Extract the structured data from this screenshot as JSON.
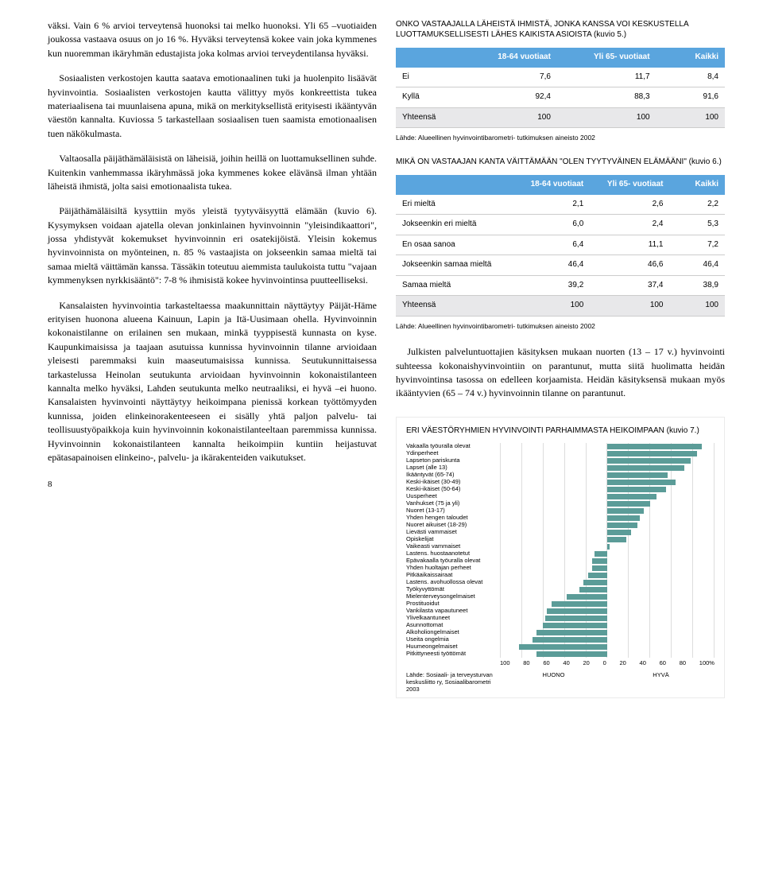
{
  "left": {
    "p1": "väksi. Vain 6 % arvioi terveytensä huonoksi tai melko huonoksi. Yli 65 –vuotiaiden joukossa vastaava osuus on jo 16 %. Hyväksi terveytensä kokee vain joka kymmenes kun nuoremman ikäryhmän edustajista joka kolmas arvioi terveydentilansa hyväksi.",
    "p2": "Sosiaalisten verkostojen kautta saatava emotionaalinen tuki ja huolenpito lisäävät hyvinvointia. Sosiaalisten verkostojen kautta välittyy myös konkreettista tukea materiaalisena tai muunlaisena apuna, mikä on merkityksellistä erityisesti ikääntyvän väestön kannalta. Kuviossa 5 tarkastellaan sosiaalisen tuen saamista emotionaalisen tuen näkökulmasta.",
    "p3": "Valtaosalla päijäthämäläisistä on läheisiä, joihin heillä on luottamuksellinen suhde. Kuitenkin vanhemmassa ikäryhmässä joka kymmenes kokee elävänsä ilman yhtään läheistä ihmistä, jolta saisi emotionaalista tukea.",
    "p4": "Päijäthämäläisiltä kysyttiin myös yleistä tyytyväisyyttä elämään (kuvio 6). Kysymyksen voidaan ajatella olevan jonkinlainen hyvinvoinnin \"yleisindikaattori\", jossa yhdistyvät kokemukset hyvinvoinnin eri osatekijöistä. Yleisin kokemus hyvinvoinnista on myönteinen, n. 85 % vastaajista on jokseenkin samaa mieltä tai samaa mieltä väittämän kanssa. Tässäkin toteutuu aiemmista taulukoista tuttu \"vajaan kymmenyksen nyrkkisääntö\": 7-8 % ihmisistä kokee hyvinvointinsa puutteelliseksi.",
    "p5": "Kansalaisten hyvinvointia tarkasteltaessa maakunnittain näyttäytyy Päijät-Häme erityisen huonona alueena Kainuun, Lapin ja Itä-Uusimaan ohella. Hyvinvoinnin kokonaistilanne on erilainen sen mukaan, minkä tyyppisestä kunnasta on kyse. Kaupunkimaisissa ja taajaan asutuissa kunnissa hyvinvoinnin tilanne arvioidaan yleisesti paremmaksi kuin maaseutumaisissa kunnissa. Seutukunnittaisessa tarkastelussa Heinolan seutukunta arvioidaan hyvinvoinnin kokonaistilanteen kannalta melko hyväksi, Lahden seutukunta melko neutraaliksi, ei hyvä –ei huono. Kansalaisten hyvinvointi näyttäytyy heikoimpana pienissä korkean työttömyyden kunnissa, joiden elinkeinorakenteeseen ei sisälly yhtä paljon palvelu- tai teollisuustyöpaikkoja kuin hyvinvoinnin kokonaistilanteeltaan paremmissa kunnissa. Hyvinvoinnin kokonaistilanteen kannalta heikoimpiin kuntiin heijastuvat epätasapainoisen elinkeino-, palvelu- ja ikärakenteiden vaikutukset."
  },
  "table5": {
    "title": "ONKO VASTAAJALLA LÄHEISTÄ IHMISTÄ, JONKA KANSSA VOI KESKUSTELLA LUOTTAMUKSELLISESTI LÄHES KAIKISTA ASIOISTA (kuvio 5.)",
    "header_bg": "#5aa5de",
    "total_bg": "#e8e8ea",
    "cols": [
      "18-64 vuotiaat",
      "Yli 65- vuotiaat",
      "Kaikki"
    ],
    "rows": [
      {
        "label": "Ei",
        "v": [
          "7,6",
          "11,7",
          "8,4"
        ]
      },
      {
        "label": "Kyllä",
        "v": [
          "92,4",
          "88,3",
          "91,6"
        ]
      }
    ],
    "total": {
      "label": "Yhteensä",
      "v": [
        "100",
        "100",
        "100"
      ]
    },
    "src": "Lähde: Alueellinen hyvinvointibarometri- tutkimuksen aineisto 2002"
  },
  "table6": {
    "title": "MIKÄ ON VASTAAJAN KANTA VÄITTÄMÄÄN \"OLEN TYYTYVÄINEN ELÄMÄÄNI\" (kuvio 6.)",
    "header_bg": "#5aa5de",
    "total_bg": "#e8e8ea",
    "cols": [
      "18-64 vuotiaat",
      "Yli 65- vuotiaat",
      "Kaikki"
    ],
    "rows": [
      {
        "label": "Eri mieltä",
        "v": [
          "2,1",
          "2,6",
          "2,2"
        ]
      },
      {
        "label": "Jokseenkin eri mieltä",
        "v": [
          "6,0",
          "2,4",
          "5,3"
        ]
      },
      {
        "label": "En osaa sanoa",
        "v": [
          "6,4",
          "11,1",
          "7,2"
        ]
      },
      {
        "label": "Jokseenkin samaa mieltä",
        "v": [
          "46,4",
          "46,6",
          "46,4"
        ]
      },
      {
        "label": "Samaa mieltä",
        "v": [
          "39,2",
          "37,4",
          "38,9"
        ]
      }
    ],
    "total": {
      "label": "Yhteensä",
      "v": [
        "100",
        "100",
        "100"
      ]
    },
    "src": "Lähde: Alueellinen hyvinvointibarometri- tutkimuksen aineisto 2002"
  },
  "right_para": "Julkisten palveluntuottajien käsityksen mukaan nuorten (13 – 17 v.) hyvinvointi suhteessa kokonaishyvinvointiin on parantunut, mutta siitä huolimatta heidän hyvinvointinsa tasossa on edelleen korjaamista. Heidän käsityksensä mukaan myös ikääntyvien (65 – 74 v.) hyvinvoinnin tilanne on parantunut.",
  "chart": {
    "title": "ERI VÄESTÖRYHMIEN HYVINVOINTI PARHAIMMASTA HEIKOIMPAAN (kuvio 7.)",
    "bar_color": "#5b9c98",
    "grid_color": "#dddddd",
    "labels": [
      "Vakaalla työuralla olevat",
      "Ydinperheet",
      "Lapseton pariskunta",
      "Lapset (alle 13)",
      "Ikääntyvät (65-74)",
      "Keski-ikäiset (30-49)",
      "Keski-ikäiset (50-64)",
      "Uusperheet",
      "Vanhukset (75 ja yli)",
      "Nuoret (13-17)",
      "Yhden hengen taloudet",
      "Nuoret aikuiset (18-29)",
      "Lievästi vammaiset",
      "Opiskelijat",
      "Vaikeasti vammaiset",
      "Lastens. huostaanotetut",
      "Epävakaalla työuralla olevat",
      "Yhden huoltajan perheet",
      "Pitkäaikaissairaat",
      "Lastens. avohuollossa olevat",
      "Työkyvyttömät",
      "Mielenterveysongelmaiset",
      "Prostituoidut",
      "Vankilasta vapautuneet",
      "Ylivelkaantuneet",
      "Asunnottomat",
      "Alkoholiongelmaiset",
      "Useita ongelmia",
      "Huumeongelmaiset",
      "Pitkittyneesti työttömät"
    ],
    "values": [
      88,
      84,
      78,
      72,
      56,
      64,
      55,
      46,
      40,
      34,
      30,
      28,
      22,
      18,
      2,
      -12,
      -14,
      -14,
      -18,
      -22,
      -26,
      -38,
      -52,
      -56,
      -58,
      -60,
      -66,
      -70,
      -82,
      -66
    ],
    "ticks": [
      "100",
      "80",
      "60",
      "40",
      "20",
      "0",
      "20",
      "40",
      "60",
      "80",
      "100%"
    ],
    "src": "Lähde: Sosiaali- ja terveysturvan keskusliitto ry, Sosiaalibarometri 2003",
    "axis_left": "HUONO",
    "axis_right": "HYVÄ"
  },
  "page_number": "8"
}
